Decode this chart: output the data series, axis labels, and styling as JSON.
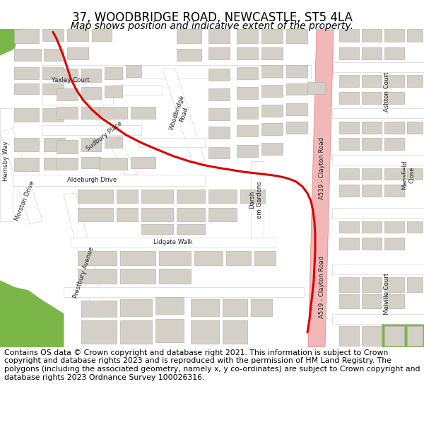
{
  "title_line1": "37, WOODBRIDGE ROAD, NEWCASTLE, ST5 4LA",
  "title_line2": "Map shows position and indicative extent of the property.",
  "footer_text": "Contains OS data © Crown copyright and database right 2021. This information is subject to Crown copyright and database rights 2023 and is reproduced with the permission of HM Land Registry. The polygons (including the associated geometry, namely x, y co-ordinates) are subject to Crown copyright and database rights 2023 Ordnance Survey 100026316.",
  "bg_color": "#ffffff",
  "map_bg": "#eeebe5",
  "road_color": "#ffffff",
  "building_color": "#d4d0c8",
  "building_outline": "#b8b4ac",
  "green_color": "#7ab648",
  "red_line_color": "#dd0000",
  "pink_road_color": "#f2b8b8",
  "a519_edge_color": "#e08080",
  "title_fontsize": 12,
  "subtitle_fontsize": 10,
  "footer_fontsize": 7.8
}
